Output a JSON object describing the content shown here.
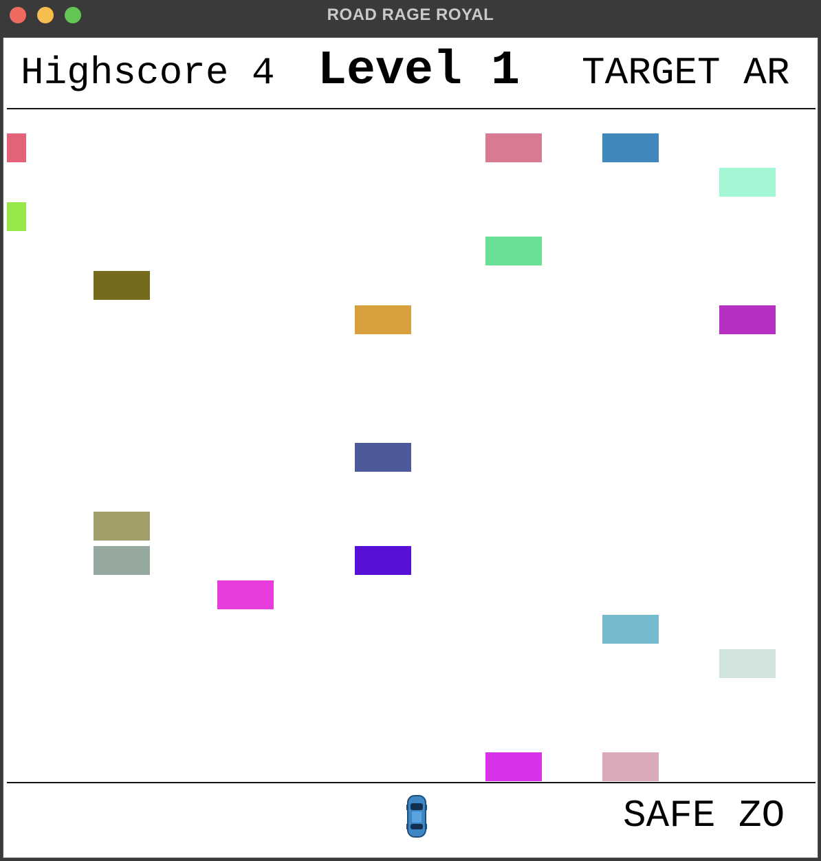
{
  "window": {
    "title": "ROAD RAGE ROYAL"
  },
  "hud": {
    "highscore_label": "Highscore 4",
    "level_label": "Level 1",
    "target_label": "TARGET AR"
  },
  "zones": {
    "safe_label": "SAFE ZO"
  },
  "colors": {
    "car_colors": [
      "#e2627a",
      "#d97a93",
      "#4088bb",
      "#a3f7d5",
      "#98e84b",
      "#6ae094",
      "#746b1d",
      "#d89f3d",
      "#b830c2",
      "#4d599b",
      "#a29f6a",
      "#96a99e",
      "#5710d6",
      "#e73ddd",
      "#74bccd",
      "#d1e5dd",
      "#d532e9",
      "#dbaab9"
    ],
    "player_car": "#3f86c4"
  }
}
